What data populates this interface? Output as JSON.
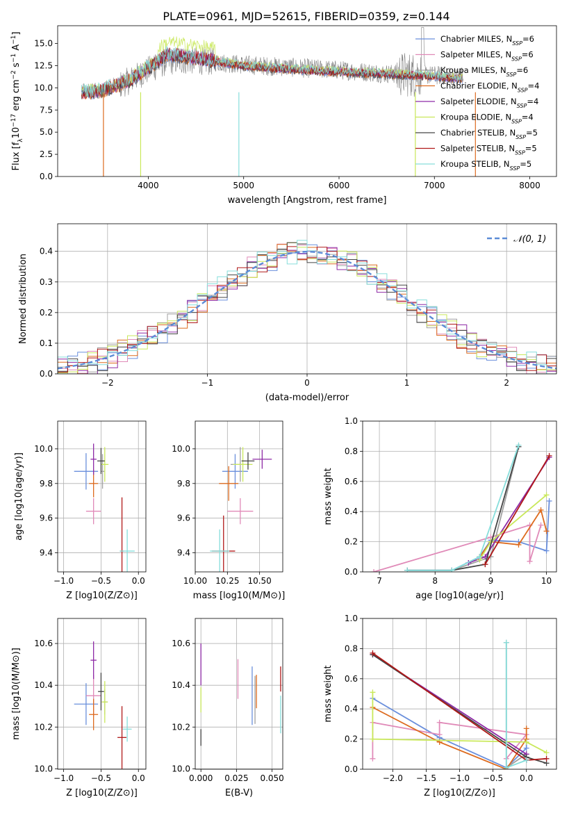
{
  "title": "PLATE=0961, MJD=52615, FIBERID=0359, z=0.144",
  "models": [
    {
      "name": "Chabrier MILES",
      "nssp": "6",
      "color": "#6a8fdc"
    },
    {
      "name": "Salpeter MILES",
      "nssp": "6",
      "color": "#e08ab8"
    },
    {
      "name": "Kroupa MILES",
      "nssp": "6",
      "color": "#a0a0a0"
    },
    {
      "name": "Chabrier ELODIE",
      "nssp": "4",
      "color": "#dd6b1f"
    },
    {
      "name": "Salpeter ELODIE",
      "nssp": "4",
      "color": "#8e2aa6"
    },
    {
      "name": "Kroupa ELODIE",
      "nssp": "4",
      "color": "#c9e85a"
    },
    {
      "name": "Chabrier STELIB",
      "nssp": "5",
      "color": "#444444"
    },
    {
      "name": "Salpeter STELIB",
      "nssp": "5",
      "color": "#b01818"
    },
    {
      "name": "Kroupa STELIB",
      "nssp": "5",
      "color": "#86dedb"
    }
  ],
  "chart_data": [
    {
      "id": "spectrum",
      "type": "line",
      "xlabel": "wavelength [Angstrom, rest frame]",
      "ylabel": "Flux [f_λ 10^-17 erg cm^-2 s^-1 A^-1]",
      "xlim": [
        3050,
        8280
      ],
      "ylim": [
        0,
        17
      ],
      "xticks": [
        4000,
        5000,
        6000,
        7000,
        8000
      ],
      "yticks": [
        0,
        2.5,
        5.0,
        7.5,
        10.0,
        12.5,
        15.0
      ],
      "ytick_labels": [
        "0.0",
        "2.5",
        "5.0",
        "7.5",
        "10.0",
        "12.5",
        "15.0"
      ],
      "data_color": "#808080",
      "continuum": [
        [
          3300,
          9.7
        ],
        [
          3600,
          9.8
        ],
        [
          3800,
          10.8
        ],
        [
          4000,
          12.0
        ],
        [
          4200,
          13.0
        ],
        [
          4500,
          13.1
        ],
        [
          5000,
          12.6
        ],
        [
          5500,
          12.3
        ],
        [
          6000,
          12.0
        ],
        [
          6500,
          11.6
        ],
        [
          7000,
          11.4
        ],
        [
          7300,
          11.3
        ]
      ],
      "model_continuum": [
        [
          3300,
          9.5
        ],
        [
          3500,
          9.7
        ],
        [
          3800,
          10.8
        ],
        [
          4000,
          12.3
        ],
        [
          4200,
          13.8
        ],
        [
          4500,
          13.4
        ],
        [
          5000,
          12.5
        ],
        [
          5500,
          12.1
        ],
        [
          6000,
          11.8
        ],
        [
          6500,
          11.6
        ],
        [
          7000,
          11.3
        ],
        [
          7300,
          11.0
        ]
      ],
      "drops": [
        [
          3530,
          0
        ],
        [
          3920,
          0
        ],
        [
          4950,
          0
        ],
        [
          6800,
          0
        ],
        [
          7430,
          0
        ]
      ]
    },
    {
      "id": "residuals",
      "type": "histogram",
      "xlabel": "(data-model)/error",
      "ylabel": "Normed distribution",
      "xlim": [
        -2.5,
        2.5
      ],
      "ylim": [
        0,
        0.49
      ],
      "xticks": [
        -2,
        -1,
        0,
        1,
        2
      ],
      "yticks": [
        0,
        0.1,
        0.2,
        0.3,
        0.4
      ],
      "ytick_labels": [
        "0.0",
        "0.1",
        "0.2",
        "0.3",
        "0.4"
      ],
      "xtick_labels": [
        "−2",
        "−1",
        "0",
        "1",
        "2"
      ],
      "bin_width": 0.1,
      "reference_label": "𝒩(0, 1)",
      "reference_color": "#5b8bd6"
    },
    {
      "id": "z-age",
      "type": "errorbar",
      "xlabel": "Z [log10(Z/Z⊙)]",
      "ylabel": "age [log10(age/yr)]",
      "xlim": [
        -1.08,
        0.1
      ],
      "ylim": [
        9.29,
        10.16
      ],
      "xticks": [
        -1.0,
        -0.5,
        0.0
      ],
      "xtick_labels": [
        "−1.0",
        "−0.5",
        "0.0"
      ],
      "yticks": [
        9.4,
        9.6,
        9.8,
        10.0
      ],
      "ytick_labels": [
        "9.4",
        "9.6",
        "9.8",
        "10.0"
      ],
      "points": [
        [
          -0.7,
          9.87,
          0.32,
          0.21
        ],
        [
          -0.6,
          9.64,
          0.2,
          0.15
        ],
        [
          -0.48,
          9.87,
          0.05,
          0.2
        ],
        [
          -0.6,
          9.8,
          0.12,
          0.16
        ],
        [
          -0.6,
          9.94,
          0.08,
          0.18
        ],
        [
          -0.45,
          9.91,
          0.1,
          0.2
        ],
        [
          -0.5,
          9.93,
          0.1,
          0.15
        ],
        [
          -0.22,
          9.41,
          0.05,
          0.62
        ],
        [
          -0.15,
          9.41,
          0.2,
          0.25
        ]
      ]
    },
    {
      "id": "mass-age",
      "type": "errorbar",
      "xlabel": "mass [log10(M/M⊙)]",
      "ylabel": "",
      "xlim": [
        10.0,
        10.68
      ],
      "ylim": [
        9.29,
        10.16
      ],
      "xticks": [
        10.0,
        10.25,
        10.5
      ],
      "xtick_labels": [
        "10.00",
        "10.25",
        "10.50"
      ],
      "yticks": [
        9.4,
        9.6,
        9.8,
        10.0
      ],
      "ytick_labels": [
        "9.4",
        "9.6",
        "9.8",
        "10.0"
      ],
      "points": [
        [
          10.31,
          9.87,
          0.2,
          0.2
        ],
        [
          10.35,
          9.64,
          0.2,
          0.15
        ],
        [
          10.35,
          9.91,
          0.15,
          0.2
        ],
        [
          10.26,
          9.8,
          0.15,
          0.2
        ],
        [
          10.52,
          9.94,
          0.15,
          0.11
        ],
        [
          10.37,
          9.91,
          0.15,
          0.2
        ],
        [
          10.41,
          9.93,
          0.1,
          0.1
        ],
        [
          10.22,
          9.41,
          0.18,
          0.41
        ],
        [
          10.19,
          9.41,
          0.15,
          0.25
        ]
      ]
    },
    {
      "id": "age-weight",
      "type": "line",
      "xlabel": "age [log10(age/yr)]",
      "ylabel": "mass weight",
      "xlim": [
        6.7,
        10.18
      ],
      "ylim": [
        0,
        1.0
      ],
      "xticks": [
        7,
        8,
        9,
        10
      ],
      "yticks": [
        0,
        0.2,
        0.4,
        0.6,
        0.8,
        1.0
      ],
      "ytick_labels": [
        "0.0",
        "0.2",
        "0.4",
        "0.6",
        "0.8",
        "1.0"
      ],
      "series": [
        {
          "x": [
            7.5,
            8.3,
            8.8,
            9.0,
            9.5,
            10.0,
            10.05
          ],
          "y": [
            0.01,
            0.01,
            0.1,
            0.21,
            0.2,
            0.14,
            0.47
          ]
        },
        {
          "x": [
            6.9,
            9.0,
            9.7,
            9.7,
            9.9
          ],
          "y": [
            0.0,
            0.23,
            0.31,
            0.07,
            0.31
          ]
        },
        {
          "x": [
            7.5,
            8.3,
            9.0,
            9.5
          ],
          "y": [
            0.01,
            0.01,
            0.1,
            0.83
          ]
        },
        {
          "x": [
            8.8,
            9.0,
            9.5,
            9.9,
            10.0
          ],
          "y": [
            0.1,
            0.2,
            0.18,
            0.41,
            0.27
          ]
        },
        {
          "x": [
            8.6,
            8.9,
            10.05
          ],
          "y": [
            0.06,
            0.1,
            0.76
          ]
        },
        {
          "x": [
            8.8,
            9.0,
            10.0
          ],
          "y": [
            0.08,
            0.2,
            0.51
          ]
        },
        {
          "x": [
            7.5,
            8.3,
            8.9,
            9.5
          ],
          "y": [
            0.01,
            0.01,
            0.05,
            0.83
          ]
        },
        {
          "x": [
            8.9,
            10.05
          ],
          "y": [
            0.05,
            0.77
          ]
        },
        {
          "x": [
            7.5,
            8.3,
            8.8,
            9.5
          ],
          "y": [
            0.01,
            0.01,
            0.1,
            0.84
          ]
        }
      ]
    },
    {
      "id": "z-mass",
      "type": "errorbar",
      "xlabel": "Z [log10(Z/Z⊙)]",
      "ylabel": "mass [log10(M/M⊙)]",
      "xlim": [
        -1.08,
        0.1
      ],
      "ylim": [
        9.998,
        10.72
      ],
      "xticks": [
        -1.0,
        -0.5,
        0.0
      ],
      "xtick_labels": [
        "−1.0",
        "−0.5",
        "0.0"
      ],
      "yticks": [
        10.0,
        10.2,
        10.4,
        10.6
      ],
      "ytick_labels": [
        "10.0",
        "10.2",
        "10.4",
        "10.6"
      ],
      "points": [
        [
          -0.7,
          10.31,
          0.32,
          0.2
        ],
        [
          -0.6,
          10.35,
          0.2,
          0.2
        ],
        [
          -0.45,
          10.32,
          0.08,
          0.12
        ],
        [
          -0.6,
          10.26,
          0.12,
          0.15
        ],
        [
          -0.6,
          10.52,
          0.08,
          0.18
        ],
        [
          -0.45,
          10.32,
          0.08,
          0.2
        ],
        [
          -0.5,
          10.37,
          0.08,
          0.18
        ],
        [
          -0.22,
          10.15,
          0.12,
          0.3
        ],
        [
          -0.15,
          10.19,
          0.12,
          0.12
        ]
      ]
    },
    {
      "id": "ebv-mass",
      "type": "errorbar",
      "xlabel": "E(B-V)",
      "ylabel": "",
      "xlim": [
        -0.004,
        0.0575
      ],
      "ylim": [
        9.998,
        10.72
      ],
      "xticks": [
        0.0,
        0.025,
        0.05
      ],
      "xtick_labels": [
        "0.000",
        "0.025",
        "0.050"
      ],
      "yticks": [
        10.0,
        10.2,
        10.4,
        10.6
      ],
      "ytick_labels": [
        "10.0",
        "10.2",
        "10.4",
        "10.6"
      ],
      "points": [
        [
          0.036,
          10.35,
          0,
          0.28
        ],
        [
          0.026,
          10.43,
          0,
          0.19
        ],
        [
          0.038,
          10.33,
          0,
          0.23
        ],
        [
          0.039,
          10.37,
          0,
          0.16
        ],
        [
          0.0,
          10.5,
          0,
          0.2
        ],
        [
          0.0,
          10.33,
          0,
          0.12
        ],
        [
          0.0,
          10.15,
          0,
          0.08
        ],
        [
          0.056,
          10.43,
          0,
          0.12
        ],
        [
          0.056,
          10.26,
          0,
          0.18
        ]
      ]
    },
    {
      "id": "z-weight",
      "type": "line",
      "xlabel": "Z [log10(Z/Z⊙)]",
      "ylabel": "mass weight",
      "xlim": [
        -2.45,
        0.45
      ],
      "ylim": [
        0,
        1.0
      ],
      "xticks": [
        -2.0,
        -1.5,
        -1.0,
        -0.5,
        0.0
      ],
      "xtick_labels": [
        "−2.0",
        "−1.5",
        "−1.0",
        "−0.5",
        "0.0"
      ],
      "yticks": [
        0,
        0.2,
        0.4,
        0.6,
        0.8,
        1.0
      ],
      "ytick_labels": [
        "0.0",
        "0.2",
        "0.4",
        "0.6",
        "0.8",
        "1.0"
      ],
      "series": [
        {
          "x": [
            -2.3,
            -1.3,
            -0.3,
            0.0,
            0.0
          ],
          "y": [
            0.47,
            0.21,
            0.01,
            0.14,
            0.2
          ]
        },
        {
          "x": [
            -2.3,
            -2.3,
            -1.3,
            -1.3,
            0.0,
            -0.3
          ],
          "y": [
            0.07,
            0.31,
            0.23,
            0.31,
            0.23,
            0.07
          ]
        },
        {
          "x": [
            -0.3,
            -0.3,
            0.0
          ],
          "y": [
            0.84,
            0.01,
            0.1
          ]
        },
        {
          "x": [
            -2.3,
            -1.3,
            -0.3,
            0.0,
            0.0
          ],
          "y": [
            0.41,
            0.18,
            0.0,
            0.2,
            0.27
          ]
        },
        {
          "x": [
            -2.3,
            0.0,
            0.0
          ],
          "y": [
            0.76,
            0.1,
            0.06
          ]
        },
        {
          "x": [
            -2.3,
            -2.3,
            0.0,
            0.3
          ],
          "y": [
            0.51,
            0.2,
            0.18,
            0.11
          ]
        },
        {
          "x": [
            -2.3,
            0.0,
            0.3
          ],
          "y": [
            0.76,
            0.08,
            0.04
          ]
        },
        {
          "x": [
            -2.3,
            0.0,
            0.3
          ],
          "y": [
            0.77,
            0.06,
            0.07
          ]
        },
        {
          "x": [
            -0.3,
            -0.3,
            0.0
          ],
          "y": [
            0.84,
            0.01,
            0.06
          ]
        }
      ]
    }
  ]
}
